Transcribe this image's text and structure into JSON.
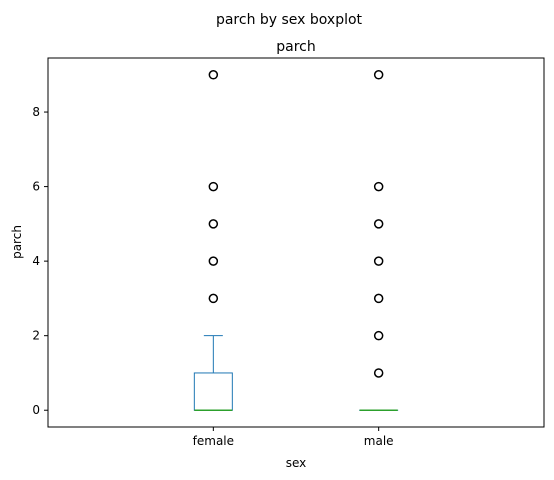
{
  "chart_data": {
    "type": "boxplot",
    "title": "parch by sex boxplot",
    "subtitle": "parch",
    "xlabel": "sex",
    "ylabel": "parch",
    "ylim": [
      -0.45,
      9.45
    ],
    "yticks": [
      0,
      2,
      4,
      6,
      8
    ],
    "grid": false,
    "categories": [
      "female",
      "male"
    ],
    "boxes": [
      {
        "category": "female",
        "whisker_low": 0,
        "q1": 0,
        "median": 0,
        "q3": 1,
        "whisker_high": 2,
        "outliers": [
          3,
          4,
          5,
          6,
          9
        ]
      },
      {
        "category": "male",
        "whisker_low": 0,
        "q1": 0,
        "median": 0,
        "q3": 0,
        "whisker_high": 0,
        "outliers": [
          1,
          2,
          3,
          4,
          5,
          6,
          9
        ]
      }
    ],
    "colors": {
      "box": "#1f77b4",
      "median": "#2ca02c",
      "outlier_edge": "#000000"
    }
  }
}
